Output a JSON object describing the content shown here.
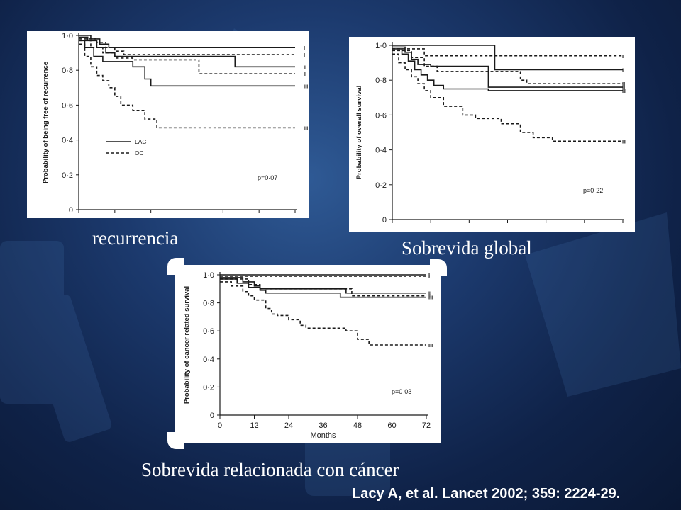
{
  "slide": {
    "captions": {
      "recurrence": "recurrencia",
      "overall": "Sobrevida global",
      "cancer": "Sobrevida relacionada con cáncer"
    },
    "citation": "Lacy A, et al. Lancet 2002; 359: 2224-29."
  },
  "colors": {
    "background": "#1c3a6e",
    "panel": "#ffffff",
    "ink": "#1a1a1a",
    "text": "#ffffff"
  },
  "chart_data": [
    {
      "type": "line",
      "title": "",
      "ylabel": "Probability of being free of recurrence",
      "xlabel": "",
      "ylim": [
        0,
        1
      ],
      "xlim": [
        0,
        72
      ],
      "yticks": [
        "0",
        "0·2",
        "0·4",
        "0·6",
        "0·8",
        "1·0"
      ],
      "xticks": [],
      "legend": {
        "solid": "LAC",
        "dashed": "OC",
        "placement": "middle-left"
      },
      "pvalue": "p=0·07",
      "series": [
        {
          "name": "I",
          "style": "solid",
          "x": [
            0,
            4,
            7,
            10,
            72
          ],
          "y": [
            1.0,
            0.98,
            0.95,
            0.93,
            0.93
          ]
        },
        {
          "name": "II",
          "style": "solid",
          "x": [
            0,
            3,
            6,
            9,
            12,
            50,
            52,
            72
          ],
          "y": [
            0.99,
            0.97,
            0.93,
            0.9,
            0.88,
            0.88,
            0.82,
            0.82
          ]
        },
        {
          "name": "III",
          "style": "solid",
          "x": [
            0,
            2,
            5,
            8,
            18,
            22,
            24,
            72
          ],
          "y": [
            0.97,
            0.93,
            0.88,
            0.85,
            0.82,
            0.75,
            0.71,
            0.71
          ]
        },
        {
          "name": "I",
          "style": "dashed",
          "x": [
            0,
            6,
            9,
            12,
            15,
            72
          ],
          "y": [
            0.98,
            0.96,
            0.93,
            0.91,
            0.89,
            0.89
          ]
        },
        {
          "name": "II",
          "style": "dashed",
          "x": [
            0,
            4,
            8,
            12,
            18,
            38,
            40,
            72
          ],
          "y": [
            0.97,
            0.93,
            0.9,
            0.87,
            0.86,
            0.86,
            0.78,
            0.78
          ]
        },
        {
          "name": "III",
          "style": "dashed",
          "x": [
            0,
            2,
            4,
            6,
            8,
            10,
            12,
            14,
            18,
            22,
            26,
            72
          ],
          "y": [
            0.95,
            0.88,
            0.82,
            0.77,
            0.74,
            0.7,
            0.65,
            0.6,
            0.57,
            0.52,
            0.47,
            0.47
          ]
        }
      ]
    },
    {
      "type": "line",
      "title": "",
      "ylabel": "Probability of overall survival",
      "xlabel": "",
      "ylim": [
        0,
        1
      ],
      "xlim": [
        0,
        72
      ],
      "yticks": [
        "0",
        "0·2",
        "0·4",
        "0·6",
        "0·8",
        "1·0"
      ],
      "xticks": [],
      "pvalue": "p=0·22",
      "series": [
        {
          "name": "I",
          "style": "solid",
          "x": [
            0,
            30,
            32,
            72
          ],
          "y": [
            1.0,
            1.0,
            0.86,
            0.86
          ]
        },
        {
          "name": "II",
          "style": "solid",
          "x": [
            0,
            4,
            6,
            8,
            12,
            16,
            30,
            72
          ],
          "y": [
            0.99,
            0.96,
            0.92,
            0.89,
            0.88,
            0.88,
            0.76,
            0.76
          ]
        },
        {
          "name": "III",
          "style": "solid",
          "x": [
            0,
            3,
            5,
            7,
            9,
            11,
            13,
            16,
            30,
            72
          ],
          "y": [
            0.98,
            0.95,
            0.91,
            0.86,
            0.83,
            0.8,
            0.77,
            0.75,
            0.74,
            0.74
          ]
        },
        {
          "name": "I",
          "style": "dashed",
          "x": [
            0,
            8,
            10,
            72
          ],
          "y": [
            0.98,
            0.98,
            0.94,
            0.94
          ]
        },
        {
          "name": "II",
          "style": "dashed",
          "x": [
            0,
            6,
            10,
            14,
            40,
            42,
            72
          ],
          "y": [
            0.97,
            0.93,
            0.88,
            0.85,
            0.8,
            0.78,
            0.78
          ]
        },
        {
          "name": "III",
          "style": "dashed",
          "x": [
            0,
            2,
            4,
            6,
            8,
            10,
            12,
            16,
            22,
            26,
            34,
            40,
            44,
            50,
            72
          ],
          "y": [
            0.95,
            0.9,
            0.86,
            0.82,
            0.78,
            0.74,
            0.7,
            0.65,
            0.6,
            0.58,
            0.55,
            0.5,
            0.47,
            0.45,
            0.45
          ]
        }
      ]
    },
    {
      "type": "line",
      "title": "",
      "ylabel": "Probability of cancer related survival",
      "xlabel": "Months",
      "ylim": [
        0,
        1
      ],
      "xlim": [
        0,
        72
      ],
      "yticks": [
        "0",
        "0·2",
        "0·4",
        "0·6",
        "0·8",
        "1·0"
      ],
      "xticks": [
        "0",
        "12",
        "24",
        "36",
        "48",
        "60",
        "72"
      ],
      "pvalue": "p=0·03",
      "series": [
        {
          "name": "I",
          "style": "solid",
          "x": [
            0,
            72
          ],
          "y": [
            1.0,
            1.0
          ]
        },
        {
          "name": "II",
          "style": "solid",
          "x": [
            0,
            8,
            12,
            14,
            42,
            44,
            72
          ],
          "y": [
            0.98,
            0.95,
            0.92,
            0.9,
            0.9,
            0.87,
            0.87
          ]
        },
        {
          "name": "III",
          "style": "solid",
          "x": [
            0,
            6,
            10,
            14,
            16,
            30,
            42,
            72
          ],
          "y": [
            0.97,
            0.94,
            0.91,
            0.89,
            0.87,
            0.87,
            0.84,
            0.84
          ]
        },
        {
          "name": "I",
          "style": "dashed",
          "x": [
            0,
            72
          ],
          "y": [
            0.99,
            0.99
          ]
        },
        {
          "name": "II",
          "style": "dashed",
          "x": [
            0,
            10,
            14,
            44,
            46,
            72
          ],
          "y": [
            0.97,
            0.93,
            0.9,
            0.9,
            0.85,
            0.85
          ]
        },
        {
          "name": "III",
          "style": "dashed",
          "x": [
            0,
            4,
            8,
            10,
            12,
            16,
            18,
            20,
            24,
            28,
            30,
            44,
            48,
            52,
            72
          ],
          "y": [
            0.95,
            0.92,
            0.88,
            0.85,
            0.82,
            0.76,
            0.72,
            0.71,
            0.68,
            0.64,
            0.62,
            0.6,
            0.54,
            0.5,
            0.5
          ]
        }
      ]
    }
  ]
}
